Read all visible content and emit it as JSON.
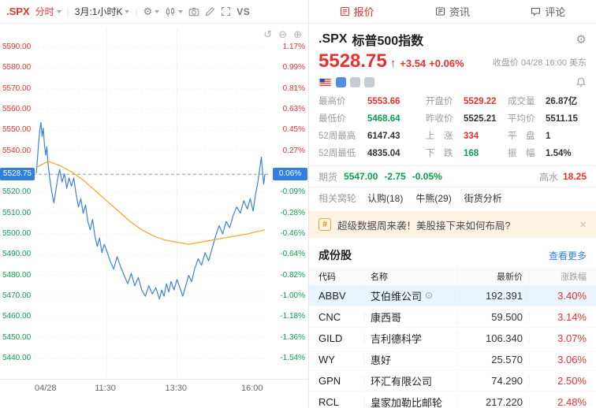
{
  "colors": {
    "up": "#e83030",
    "down": "#0a9e50",
    "accent_blue": "#2f80e0",
    "line_blue": "#3b82d9",
    "ma_orange": "#f5a623",
    "banner_bg": "#fcf3e3",
    "highlight_row": "#e9f4fe"
  },
  "icons": {
    "gear": "⚙",
    "undo": "↺",
    "zoom_out": "⊖",
    "zoom_in": "⊕",
    "up_arrow": "↑",
    "circle_eye": "⊙",
    "hash": "#"
  },
  "chart_toolbar": {
    "symbol": ".SPX",
    "mode": "分时",
    "period": "3月:1小时K",
    "vs": "VS"
  },
  "chart_axes": {
    "pairs": [
      {
        "v": 5590,
        "price": "5590.00",
        "pct": "1.17%",
        "dir": "up"
      },
      {
        "v": 5580,
        "price": "5580.00",
        "pct": "0.99%",
        "dir": "up"
      },
      {
        "v": 5570,
        "price": "5570.00",
        "pct": "0.81%",
        "dir": "up"
      },
      {
        "v": 5560,
        "price": "5560.00",
        "pct": "0.63%",
        "dir": "up"
      },
      {
        "v": 5550,
        "price": "5550.00",
        "pct": "0.45%",
        "dir": "up"
      },
      {
        "v": 5540,
        "price": "5540.00",
        "pct": "0.27%",
        "dir": "up"
      },
      {
        "v": 5520,
        "price": "5520.00",
        "pct": "-0.09%",
        "dir": "down"
      },
      {
        "v": 5510,
        "price": "5510.00",
        "pct": "-0.28%",
        "dir": "down"
      },
      {
        "v": 5500,
        "price": "5500.00",
        "pct": "-0.46%",
        "dir": "down"
      },
      {
        "v": 5490,
        "price": "5490.00",
        "pct": "-0.64%",
        "dir": "down"
      },
      {
        "v": 5480,
        "price": "5480.00",
        "pct": "-0.82%",
        "dir": "down"
      },
      {
        "v": 5470,
        "price": "5470.00",
        "pct": "-1.00%",
        "dir": "down"
      },
      {
        "v": 5460,
        "price": "5460.00",
        "pct": "-1.18%",
        "dir": "down"
      },
      {
        "v": 5450,
        "price": "5450.00",
        "pct": "-1.36%",
        "dir": "down"
      },
      {
        "v": 5440,
        "price": "5440.00",
        "pct": "-1.54%",
        "dir": "down"
      }
    ],
    "current": {
      "v": 5528.75,
      "price": "5528.75",
      "pct": "0.06%"
    },
    "x_labels": [
      {
        "label": "04/28",
        "t": 0
      },
      {
        "label": "11:30",
        "t": 120
      },
      {
        "label": "13:30",
        "t": 240
      },
      {
        "label": "16:00",
        "t": 390
      }
    ]
  },
  "chart_data": {
    "type": "line",
    "title": ".SPX 分时",
    "x_unit": "minutes from 09:30",
    "x_range": [
      0,
      390
    ],
    "y_range": [
      5435,
      5595
    ],
    "prev_close": 5525.21,
    "current_price": 5528.75,
    "day_high": 5553.66,
    "day_low": 5468.64,
    "series": [
      {
        "name": "price",
        "color": "#3b82d9",
        "points": [
          [
            0,
            5529.2
          ],
          [
            2,
            5536
          ],
          [
            4,
            5544
          ],
          [
            6,
            5550
          ],
          [
            8,
            5553.7
          ],
          [
            10,
            5547
          ],
          [
            12,
            5551
          ],
          [
            14,
            5543
          ],
          [
            16,
            5538
          ],
          [
            18,
            5542
          ],
          [
            20,
            5534
          ],
          [
            23,
            5527
          ],
          [
            26,
            5521
          ],
          [
            30,
            5515
          ],
          [
            33,
            5520
          ],
          [
            36,
            5526
          ],
          [
            40,
            5531
          ],
          [
            44,
            5525
          ],
          [
            48,
            5529
          ],
          [
            52,
            5522
          ],
          [
            56,
            5527
          ],
          [
            60,
            5523
          ],
          [
            64,
            5527
          ],
          [
            68,
            5519
          ],
          [
            72,
            5513
          ],
          [
            76,
            5517
          ],
          [
            80,
            5510
          ],
          [
            84,
            5514
          ],
          [
            88,
            5506
          ],
          [
            92,
            5502
          ],
          [
            96,
            5507
          ],
          [
            100,
            5499
          ],
          [
            104,
            5494
          ],
          [
            108,
            5498
          ],
          [
            112,
            5491
          ],
          [
            116,
            5495
          ],
          [
            120,
            5492
          ],
          [
            126,
            5487
          ],
          [
            132,
            5483
          ],
          [
            138,
            5489
          ],
          [
            144,
            5484
          ],
          [
            150,
            5480
          ],
          [
            156,
            5476
          ],
          [
            162,
            5481
          ],
          [
            168,
            5475
          ],
          [
            174,
            5479
          ],
          [
            180,
            5473
          ],
          [
            186,
            5470
          ],
          [
            192,
            5475
          ],
          [
            198,
            5471
          ],
          [
            204,
            5474
          ],
          [
            210,
            5468.6
          ],
          [
            214,
            5473
          ],
          [
            218,
            5470
          ],
          [
            222,
            5476
          ],
          [
            226,
            5472
          ],
          [
            230,
            5477
          ],
          [
            235,
            5473
          ],
          [
            240,
            5478
          ],
          [
            245,
            5474
          ],
          [
            250,
            5470
          ],
          [
            255,
            5475
          ],
          [
            260,
            5480
          ],
          [
            265,
            5477
          ],
          [
            270,
            5483
          ],
          [
            276,
            5488
          ],
          [
            282,
            5485
          ],
          [
            288,
            5491
          ],
          [
            294,
            5487
          ],
          [
            300,
            5493
          ],
          [
            306,
            5499
          ],
          [
            312,
            5504
          ],
          [
            318,
            5500
          ],
          [
            324,
            5506
          ],
          [
            330,
            5503
          ],
          [
            336,
            5509
          ],
          [
            342,
            5513
          ],
          [
            348,
            5510
          ],
          [
            354,
            5516
          ],
          [
            360,
            5512
          ],
          [
            365,
            5517
          ],
          [
            370,
            5511
          ],
          [
            374,
            5519
          ],
          [
            378,
            5525
          ],
          [
            381,
            5531
          ],
          [
            384,
            5537
          ],
          [
            386,
            5530
          ],
          [
            388,
            5524
          ],
          [
            390,
            5528.75
          ]
        ]
      },
      {
        "name": "average",
        "color": "#f5a623",
        "points": [
          [
            0,
            5532
          ],
          [
            20,
            5535
          ],
          [
            40,
            5533
          ],
          [
            60,
            5530
          ],
          [
            80,
            5526
          ],
          [
            100,
            5521
          ],
          [
            120,
            5516
          ],
          [
            140,
            5511
          ],
          [
            160,
            5506
          ],
          [
            180,
            5502
          ],
          [
            200,
            5499
          ],
          [
            220,
            5497
          ],
          [
            240,
            5496
          ],
          [
            260,
            5495
          ],
          [
            280,
            5496
          ],
          [
            300,
            5497
          ],
          [
            320,
            5498
          ],
          [
            340,
            5499
          ],
          [
            360,
            5500
          ],
          [
            390,
            5502
          ]
        ]
      }
    ]
  },
  "quote": {
    "tabs": [
      {
        "label": "报价"
      },
      {
        "label": "资讯"
      },
      {
        "label": "评论"
      }
    ],
    "symbol": ".SPX",
    "name": "标普500指数",
    "price": "5528.75",
    "change": "+3.54",
    "change_pct": "+0.06%",
    "status": "收盘价 04/28 16:00 美东",
    "stats": [
      {
        "label": "最高价",
        "value": "5553.66",
        "color": "up"
      },
      {
        "label": "开盘价",
        "value": "5529.22",
        "color": "up"
      },
      {
        "label": "成交量",
        "value": "26.87亿",
        "color": ""
      },
      {
        "label": "最低价",
        "value": "5468.64",
        "color": "down"
      },
      {
        "label": "昨收价",
        "value": "5525.21",
        "color": ""
      },
      {
        "label": "平均价",
        "value": "5511.15",
        "color": ""
      },
      {
        "label": "52周最高",
        "value": "6147.43",
        "color": ""
      },
      {
        "label": "上　涨",
        "value": "334",
        "color": "up"
      },
      {
        "label": "平　盘",
        "value": "1",
        "color": ""
      },
      {
        "label": "52周最低",
        "value": "4835.04",
        "color": ""
      },
      {
        "label": "下　跌",
        "value": "168",
        "color": "down"
      },
      {
        "label": "振　幅",
        "value": "1.54%",
        "color": ""
      }
    ],
    "futures": {
      "label": "期货",
      "price": "5547.00",
      "change": "-2.75",
      "pct": "-0.05%",
      "premium_label": "高水",
      "premium": "18.25"
    },
    "warrants": {
      "label": "相关窝轮",
      "links": [
        "认购(18)",
        "牛熊(29)",
        "街货分析"
      ]
    },
    "banner": {
      "text": "超级数据周来袭！美股接下来如何布局?",
      "close": "×"
    },
    "constituents": {
      "title": "成份股",
      "more": "查看更多",
      "headers": [
        "代码",
        "名称",
        "最新价",
        "涨跌幅"
      ],
      "rows": [
        {
          "code": "ABBV",
          "name": "艾伯维公司",
          "price": "192.391",
          "pct": "3.40%",
          "highlight": true,
          "has_icon": true
        },
        {
          "code": "CNC",
          "name": "康西哥",
          "price": "59.500",
          "pct": "3.14%"
        },
        {
          "code": "GILD",
          "name": "吉利德科学",
          "price": "106.340",
          "pct": "3.07%"
        },
        {
          "code": "WY",
          "name": "惠好",
          "price": "25.570",
          "pct": "3.06%"
        },
        {
          "code": "GPN",
          "name": "环汇有限公司",
          "price": "74.290",
          "pct": "2.50%"
        },
        {
          "code": "RCL",
          "name": "皇家加勒比邮轮",
          "price": "217.220",
          "pct": "2.48%"
        }
      ]
    }
  }
}
